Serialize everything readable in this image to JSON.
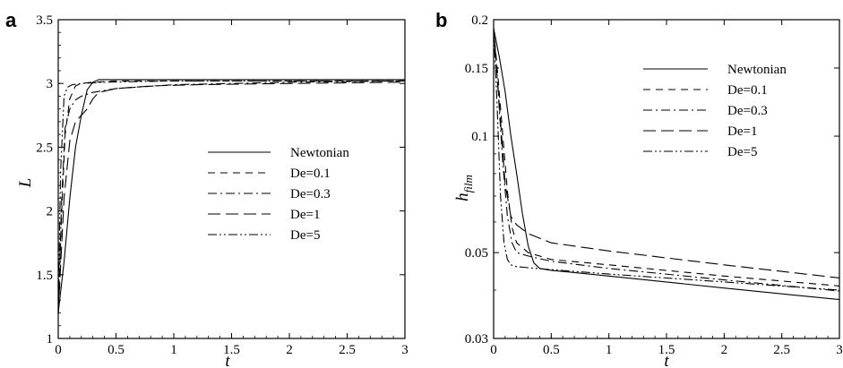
{
  "chart_data": [
    {
      "panel": "a",
      "type": "line",
      "xlabel": "t",
      "ylabel": "L",
      "xlim": [
        0,
        3
      ],
      "ylim": [
        1,
        3.5
      ],
      "yscale": "linear",
      "xticks": [
        "0",
        "0.5",
        "1",
        "1.5",
        "2",
        "2.5",
        "3"
      ],
      "yticks": [
        "1",
        "1.5",
        "2",
        "2.5",
        "3",
        "3.5"
      ],
      "grid": false,
      "legend_position": "center-right",
      "series": [
        {
          "name": "Newtonian",
          "dash": "solid",
          "x": [
            0,
            0.05,
            0.1,
            0.15,
            0.2,
            0.25,
            0.3,
            0.35,
            0.4,
            0.6,
            1,
            2,
            3
          ],
          "y": [
            1.2,
            1.6,
            2.1,
            2.5,
            2.75,
            2.95,
            3.01,
            3.03,
            3.03,
            3.03,
            3.03,
            3.03,
            3.03
          ]
        },
        {
          "name": "De=0.1",
          "dash": "8,6",
          "x": [
            0,
            0.03,
            0.06,
            0.1,
            0.15,
            0.2,
            0.3,
            0.5,
            1,
            2,
            3
          ],
          "y": [
            1.2,
            2.0,
            2.6,
            2.88,
            2.98,
            3.0,
            3.01,
            3.02,
            3.02,
            3.02,
            3.02
          ]
        },
        {
          "name": "De=0.3",
          "dash": "10,4,2,4",
          "x": [
            0,
            0.03,
            0.06,
            0.1,
            0.15,
            0.2,
            0.3,
            0.5,
            1,
            2,
            3
          ],
          "y": [
            1.2,
            2.1,
            2.65,
            2.8,
            2.87,
            2.9,
            2.93,
            2.96,
            2.99,
            3.01,
            3.02
          ]
        },
        {
          "name": "De=1",
          "dash": "14,6",
          "x": [
            0,
            0.05,
            0.1,
            0.15,
            0.2,
            0.25,
            0.3,
            0.35,
            0.5,
            0.8,
            1.2,
            2,
            3
          ],
          "y": [
            1.2,
            2.1,
            2.55,
            2.7,
            2.75,
            2.8,
            2.88,
            2.93,
            2.96,
            2.98,
            2.99,
            3.0,
            3.01
          ]
        },
        {
          "name": "De=5",
          "dash": "10,3,2,3,2,3",
          "x": [
            0,
            0.02,
            0.05,
            0.08,
            0.12,
            0.2,
            0.4,
            1,
            2,
            3
          ],
          "y": [
            1.2,
            2.3,
            2.9,
            2.97,
            2.99,
            3.0,
            3.01,
            3.02,
            3.02,
            3.02
          ]
        }
      ],
      "legend_entries": [
        "Newtonian",
        "De=0.1",
        "De=0.3",
        "De=1",
        "De=5"
      ]
    },
    {
      "panel": "b",
      "type": "line",
      "xlabel": "t",
      "ylabel": "h",
      "ylabel_subscript": "film",
      "xlim": [
        0,
        3
      ],
      "ylim": [
        0.03,
        0.2
      ],
      "yscale": "log",
      "xticks": [
        "0",
        "0.5",
        "1",
        "1.5",
        "2",
        "2.5",
        "3"
      ],
      "yticks": [
        {
          "value": 0.03,
          "label": "0.03"
        },
        {
          "value": 0.05,
          "label": "0.05"
        },
        {
          "value": 0.1,
          "label": "0.1"
        },
        {
          "value": 0.15,
          "label": "0.15"
        },
        {
          "value": 0.2,
          "label": "0.2"
        }
      ],
      "grid": false,
      "legend_position": "top-right",
      "series": [
        {
          "name": "Newtonian",
          "dash": "solid",
          "x": [
            0,
            0.05,
            0.1,
            0.15,
            0.2,
            0.25,
            0.3,
            0.35,
            0.4,
            0.5,
            1,
            2,
            3
          ],
          "y": [
            0.19,
            0.16,
            0.13,
            0.1,
            0.08,
            0.063,
            0.052,
            0.047,
            0.0455,
            0.045,
            0.0435,
            0.0405,
            0.0378
          ]
        },
        {
          "name": "De=0.1",
          "dash": "8,6",
          "x": [
            0,
            0.04,
            0.08,
            0.12,
            0.16,
            0.2,
            0.3,
            0.5,
            1,
            2,
            3
          ],
          "y": [
            0.19,
            0.14,
            0.1,
            0.072,
            0.058,
            0.053,
            0.05,
            0.048,
            0.0465,
            0.0435,
            0.041
          ]
        },
        {
          "name": "De=0.3",
          "dash": "10,4,2,4",
          "x": [
            0,
            0.04,
            0.08,
            0.12,
            0.16,
            0.2,
            0.3,
            0.5,
            1,
            2,
            3
          ],
          "y": [
            0.19,
            0.13,
            0.085,
            0.062,
            0.053,
            0.05,
            0.049,
            0.0475,
            0.0455,
            0.0425,
            0.0398
          ]
        },
        {
          "name": "De=1",
          "dash": "14,6",
          "x": [
            0,
            0.05,
            0.1,
            0.15,
            0.2,
            0.3,
            0.5,
            1,
            2,
            3
          ],
          "y": [
            0.19,
            0.12,
            0.075,
            0.062,
            0.059,
            0.056,
            0.053,
            0.0505,
            0.0465,
            0.043
          ]
        },
        {
          "name": "De=5",
          "dash": "10,3,2,3,2,3",
          "x": [
            0,
            0.03,
            0.06,
            0.09,
            0.12,
            0.15,
            0.2,
            0.3,
            0.5,
            1,
            2,
            3
          ],
          "y": [
            0.19,
            0.12,
            0.07,
            0.053,
            0.048,
            0.0465,
            0.046,
            0.0457,
            0.0452,
            0.044,
            0.042,
            0.04
          ]
        }
      ],
      "legend_entries": [
        "Newtonian",
        "De=0.1",
        "De=0.3",
        "De=1",
        "De=5"
      ]
    }
  ]
}
